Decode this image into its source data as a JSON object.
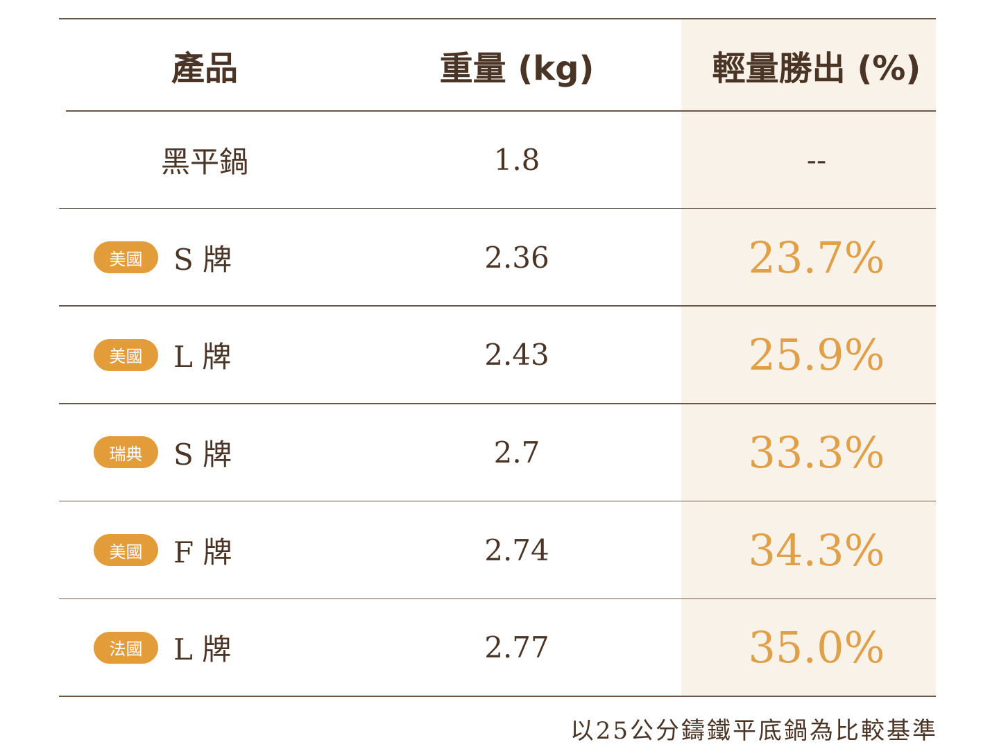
{
  "table": {
    "header": [
      "產品",
      "重量 (kg)",
      "輕量勝出 (%)"
    ],
    "rows": [
      {
        "name": "黑平鍋",
        "weight": "1.8",
        "saving": "--"
      },
      {
        "badge": "美國",
        "name": "S 牌",
        "weight": "2.36",
        "saving": "23.7%"
      },
      {
        "badge": "美國",
        "name": "L 牌",
        "weight": "2.43",
        "saving": "25.9%"
      },
      {
        "badge": "瑞典",
        "name": "S 牌",
        "weight": "2.7",
        "saving": "33.3%"
      },
      {
        "badge": "美國",
        "name": "F 牌",
        "weight": "2.74",
        "saving": "34.3%"
      },
      {
        "badge": "法國",
        "name": "L 牌",
        "weight": "2.77",
        "saving": "35.0%"
      }
    ]
  },
  "footnote": "以25公分鑄鐵平底鍋為比較基準"
}
